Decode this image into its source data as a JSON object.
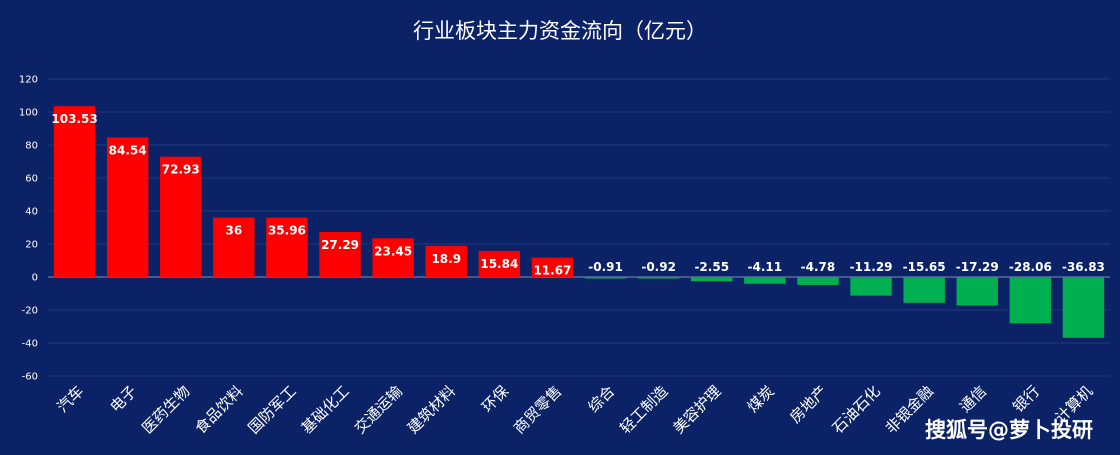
{
  "chart_data": {
    "type": "bar",
    "title": "行业板块主力资金流向（亿元）",
    "categories": [
      "汽车",
      "电子",
      "医药生物",
      "食品饮料",
      "国防军工",
      "基础化工",
      "交通运输",
      "建筑材料",
      "环保",
      "商贸零售",
      "综合",
      "轻工制造",
      "美容护理",
      "煤炭",
      "房地产",
      "石油石化",
      "非银金融",
      "通信",
      "银行",
      "计算机"
    ],
    "values": [
      103.53,
      84.54,
      72.93,
      36,
      35.96,
      27.29,
      23.45,
      18.9,
      15.84,
      11.67,
      -0.91,
      -0.92,
      -2.55,
      -4.11,
      -4.78,
      -11.29,
      -15.65,
      -17.29,
      -28.06,
      -36.83
    ],
    "data_labels": [
      "103.53",
      "84.54",
      "72.93",
      "36",
      "35.96",
      "27.29",
      "23.45",
      "18.9",
      "15.84",
      "11.67",
      "-0.91",
      "-0.92",
      "-2.55",
      "-4.11",
      "-4.78",
      "-11.29",
      "-15.65",
      "-17.29",
      "-28.06",
      "-36.83"
    ],
    "yticks": [
      "120",
      "100",
      "80",
      "60",
      "40",
      "20",
      "0",
      "-20",
      "-40",
      "-60"
    ],
    "ylim": [
      -60,
      120
    ],
    "grid": true,
    "legend": "none",
    "colors": {
      "background": "#0b2366",
      "positive": "#ff0000",
      "negative": "#00b050",
      "grid": "#1f3a7d",
      "text": "#ffffff"
    }
  },
  "watermark": "搜狐号@萝卜投研"
}
